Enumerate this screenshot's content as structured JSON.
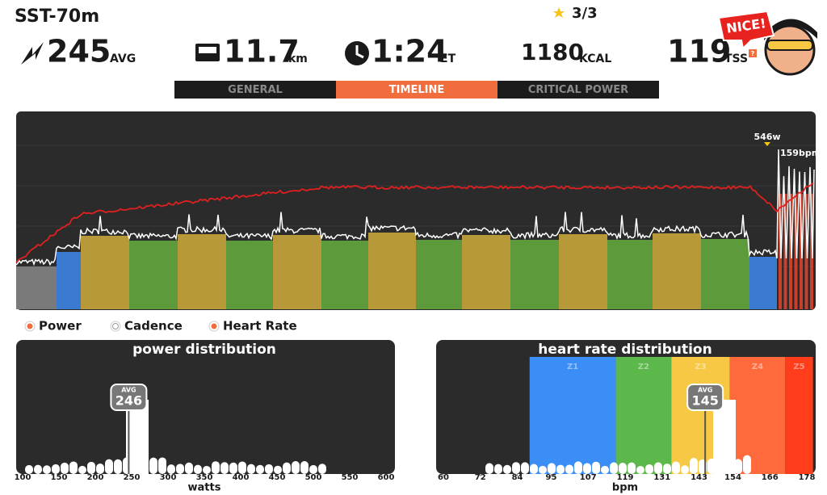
{
  "header": {
    "title": "SST-70m",
    "stars": "3/3",
    "badge": "NICE!"
  },
  "stats": [
    {
      "value": "245",
      "unit": "AVG"
    },
    {
      "value": "11.7",
      "unit": "km"
    },
    {
      "value": "1:24",
      "unit": "ET"
    },
    {
      "value": "1180",
      "unit": "KCAL"
    },
    {
      "value": "119",
      "unit": "TSS"
    }
  ],
  "tabs": {
    "items": [
      "GENERAL",
      "TIMELINE",
      "CRITICAL POWER"
    ],
    "active": 1
  },
  "timeline": {
    "max_power_label": "546w",
    "max_hr_label": "159bpm"
  },
  "legend": [
    "Power",
    "Cadence",
    "Heart Rate"
  ],
  "power_distribution": {
    "title": "power distribution",
    "xlabel": "watts",
    "xlim": [
      100,
      600
    ],
    "xticks": [
      100,
      150,
      200,
      250,
      300,
      350,
      400,
      450,
      500,
      550,
      600
    ],
    "avg": {
      "label": "AVG",
      "value": 246
    }
  },
  "hr_distribution": {
    "title": "heart rate distribution",
    "xlabel": "bpm",
    "xlim": [
      60,
      178
    ],
    "xticks": [
      60,
      72,
      84,
      95,
      107,
      119,
      131,
      143,
      154,
      166,
      178
    ],
    "zones": [
      {
        "name": "Z1",
        "from": 88,
        "to": 116,
        "color": "#3a8ef6"
      },
      {
        "name": "Z2",
        "from": 116,
        "to": 134,
        "color": "#5cb84a"
      },
      {
        "name": "Z3",
        "from": 134,
        "to": 153,
        "color": "#f7c843"
      },
      {
        "name": "Z4",
        "from": 153,
        "to": 171,
        "color": "#ff6a3d"
      },
      {
        "name": "Z5",
        "from": 171,
        "to": 180,
        "color": "#ff3d1a"
      }
    ],
    "avg": {
      "label": "AVG",
      "value": 145
    }
  }
}
